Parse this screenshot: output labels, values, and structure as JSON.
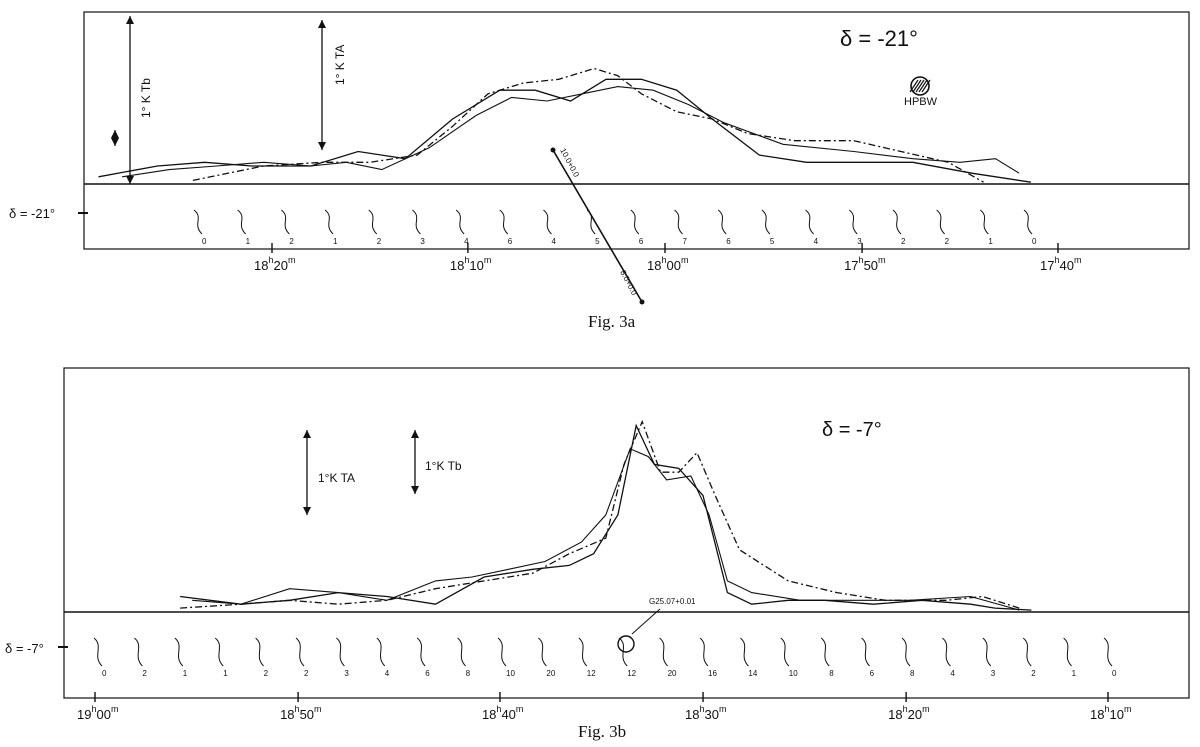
{
  "chart_data": [
    {
      "panel": "Fig. 3a",
      "type": "line",
      "caption": "Fig. 3a",
      "declination_label": "δ = -21°",
      "strip_label": "δ = -21°",
      "scale_labels": [
        "1° K TA",
        "1° K Tb"
      ],
      "beam_label": "HPBW",
      "line_label_1": "10.0+0.0",
      "line_label_2": "8.0+0.0",
      "x_ticks": [
        {
          "h": "18",
          "m": "20",
          "pos": 18.333
        },
        {
          "h": "18",
          "m": "10",
          "pos": 18.167
        },
        {
          "h": "18",
          "m": "00",
          "pos": 18.0
        },
        {
          "h": "17",
          "m": "50",
          "pos": 17.833
        },
        {
          "h": "17",
          "m": "40",
          "pos": 17.667
        }
      ],
      "x_axis": "right ascension (hours), decreasing to the right",
      "xlim": [
        18.59,
        17.55
      ],
      "ylim": [
        0,
        4.6
      ],
      "series": [
        {
          "style": "solid-1",
          "x": [
            18.48,
            18.43,
            18.39,
            18.35,
            18.3,
            18.26,
            18.22,
            18.18,
            18.14,
            18.11,
            18.08,
            18.05,
            18.02,
            17.99,
            17.96,
            17.92,
            17.88,
            17.83,
            17.79,
            17.74,
            17.69
          ],
          "y": [
            0.2,
            0.5,
            0.6,
            0.5,
            0.5,
            0.9,
            0.7,
            1.8,
            2.6,
            2.6,
            2.3,
            2.9,
            2.9,
            2.6,
            1.8,
            0.8,
            0.6,
            0.6,
            0.6,
            0.3,
            0.05
          ]
        },
        {
          "style": "solid-2",
          "x": [
            18.46,
            18.42,
            18.38,
            18.34,
            18.3,
            18.27,
            18.24,
            18.2,
            18.16,
            18.13,
            18.1,
            18.07,
            18.04,
            18.01,
            17.98,
            17.95,
            17.9,
            17.84,
            17.79,
            17.75,
            17.72,
            17.7
          ],
          "y": [
            0.2,
            0.4,
            0.5,
            0.6,
            0.5,
            0.6,
            0.4,
            1.0,
            1.9,
            2.4,
            2.3,
            2.5,
            2.7,
            2.6,
            2.2,
            1.7,
            1.1,
            0.9,
            0.7,
            0.6,
            0.7,
            0.3
          ]
        },
        {
          "style": "dash-dot",
          "x": [
            18.4,
            18.34,
            18.29,
            18.25,
            18.21,
            18.18,
            18.15,
            18.12,
            18.09,
            18.06,
            18.04,
            18.02,
            17.99,
            17.96,
            17.93,
            17.89,
            17.84,
            17.8,
            17.76,
            17.73
          ],
          "y": [
            0.1,
            0.5,
            0.6,
            0.6,
            0.8,
            1.6,
            2.5,
            2.8,
            2.9,
            3.2,
            3.0,
            2.5,
            2.0,
            1.8,
            1.4,
            1.2,
            1.2,
            0.9,
            0.6,
            0.05
          ]
        }
      ],
      "contour_labels": [
        "0",
        "1",
        "2",
        "1",
        "2",
        "3",
        "4",
        "6",
        "4",
        "5",
        "6",
        "7",
        "6",
        "5",
        "4",
        "3",
        "2",
        "2",
        "1",
        "0"
      ]
    },
    {
      "panel": "Fig. 3b",
      "type": "line",
      "caption": "Fig. 3b",
      "declination_label": "δ = -7°",
      "strip_label": "δ = -7°",
      "scale_labels": [
        "1°K TA",
        "1°K Tb"
      ],
      "source_label": "G25.07+0.01",
      "x_ticks": [
        {
          "h": "19",
          "m": "00",
          "pos": 19.0
        },
        {
          "h": "18",
          "m": "50",
          "pos": 18.833
        },
        {
          "h": "18",
          "m": "40",
          "pos": 18.667
        },
        {
          "h": "18",
          "m": "30",
          "pos": 18.5
        },
        {
          "h": "18",
          "m": "20",
          "pos": 18.333
        },
        {
          "h": "18",
          "m": "10",
          "pos": 18.167
        }
      ],
      "x_axis": "right ascension (hours), decreasing to the right",
      "xlim": [
        19.02,
        18.1
      ],
      "ylim": [
        0,
        5.2
      ],
      "series": [
        {
          "style": "solid-1",
          "x": [
            18.93,
            18.88,
            18.84,
            18.8,
            18.76,
            18.72,
            18.68,
            18.64,
            18.61,
            18.59,
            18.57,
            18.555,
            18.54,
            18.52,
            18.5,
            18.48,
            18.46,
            18.43,
            18.4,
            18.36,
            18.32,
            18.28,
            18.26,
            18.23
          ],
          "y": [
            0.4,
            0.2,
            0.3,
            0.5,
            0.4,
            0.2,
            0.9,
            1.1,
            1.2,
            1.5,
            2.5,
            4.8,
            3.8,
            3.7,
            3.0,
            0.5,
            0.2,
            0.3,
            0.3,
            0.2,
            0.3,
            0.2,
            0.1,
            0.05
          ]
        },
        {
          "style": "solid-2",
          "x": [
            18.92,
            18.88,
            18.84,
            18.8,
            18.76,
            18.72,
            18.69,
            18.66,
            18.63,
            18.6,
            18.58,
            18.56,
            18.545,
            18.53,
            18.51,
            18.495,
            18.48,
            18.46,
            18.42,
            18.38,
            18.33,
            18.28,
            18.24
          ],
          "y": [
            0.3,
            0.2,
            0.6,
            0.5,
            0.3,
            0.8,
            0.9,
            1.1,
            1.3,
            1.8,
            2.5,
            4.2,
            4.0,
            3.4,
            3.5,
            2.5,
            0.8,
            0.5,
            0.3,
            0.3,
            0.3,
            0.4,
            0.05
          ]
        },
        {
          "style": "dash-dot",
          "x": [
            18.93,
            18.88,
            18.84,
            18.8,
            18.76,
            18.72,
            18.68,
            18.64,
            18.61,
            18.58,
            18.565,
            18.55,
            18.535,
            18.52,
            18.505,
            18.49,
            18.47,
            18.43,
            18.39,
            18.35,
            18.3,
            18.27,
            18.24
          ],
          "y": [
            0.1,
            0.2,
            0.3,
            0.2,
            0.3,
            0.6,
            0.8,
            1.0,
            1.5,
            1.9,
            3.8,
            4.9,
            3.6,
            3.6,
            4.1,
            3.0,
            1.6,
            0.8,
            0.5,
            0.3,
            0.3,
            0.4,
            0.1
          ]
        }
      ],
      "contour_labels": [
        "0",
        "2",
        "1",
        "1",
        "2",
        "2",
        "3",
        "4",
        "6",
        "8",
        "10",
        "20",
        "12",
        "12",
        "20",
        "16",
        "14",
        "10",
        "8",
        "6",
        "8",
        "4",
        "3",
        "2",
        "1",
        "0"
      ]
    }
  ]
}
